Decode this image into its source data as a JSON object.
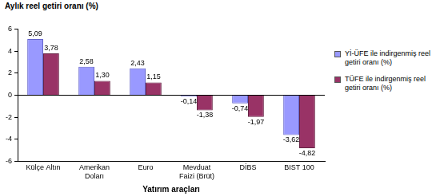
{
  "chart_data": {
    "type": "bar",
    "y_label": "Aylık reel getiri oranı (%)",
    "x_label": "Yatırım araçları",
    "categories": [
      "Külçe Altın",
      "Amerikan Doları",
      "Euro",
      "Mevduat Faizi (Brüt)",
      "DİBS",
      "BIST 100"
    ],
    "series": [
      {
        "name": "Yİ-ÜFE ile indirgenmiş reel getiri oranı (%)",
        "color": "#9999ff",
        "values": [
          5.09,
          2.58,
          2.43,
          -0.14,
          -0.74,
          -3.62
        ],
        "value_labels": [
          "5,09",
          "2,58",
          "2,43",
          "-0,14",
          "-0,74",
          "-3,62"
        ]
      },
      {
        "name": "TÜFE ile indirgenmiş reel getiri oranı (%)",
        "color": "#993366",
        "values": [
          3.78,
          1.3,
          1.15,
          -1.38,
          -1.97,
          -4.82
        ],
        "value_labels": [
          "3,78",
          "1,30",
          "1,15",
          "-1,38",
          "-1,97",
          "-4,82"
        ]
      }
    ],
    "ylim": [
      -6,
      6
    ],
    "yticks": [
      -6,
      -4,
      -2,
      0,
      2,
      4,
      6
    ],
    "grid": false,
    "legend": "right",
    "data_labels": true
  }
}
